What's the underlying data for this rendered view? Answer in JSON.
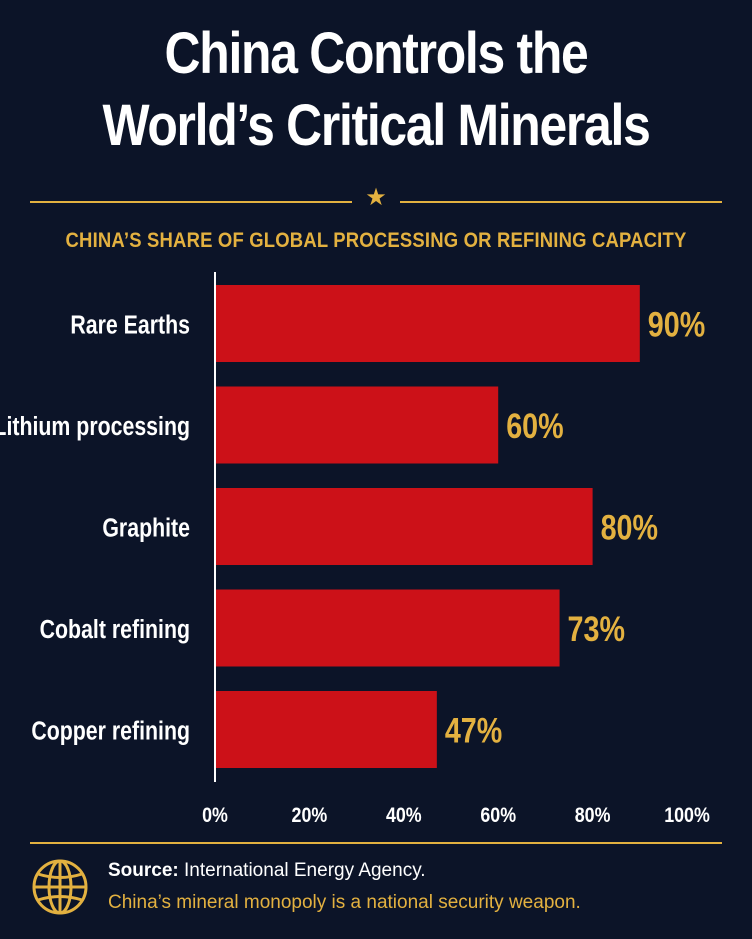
{
  "header": {
    "title_line1": "China Controls the",
    "title_line2": "World’s Critical Minerals",
    "star_glyph": "★",
    "subtitle": "CHINA’S SHARE OF GLOBAL PROCESSING OR REFINING CAPACITY"
  },
  "colors": {
    "background": "#0c1428",
    "bar": "#cc1118",
    "accent": "#e3b140",
    "text": "#ffffff"
  },
  "chart_data": {
    "type": "bar",
    "orientation": "horizontal",
    "title": "",
    "xlabel": "",
    "ylabel": "",
    "categories": [
      "Rare Earths",
      "Lithium processing",
      "Graphite",
      "Cobalt refining",
      "Copper refining"
    ],
    "values": [
      90,
      60,
      80,
      73,
      47
    ],
    "value_labels": [
      "90%",
      "60%",
      "80%",
      "73%",
      "47%"
    ],
    "xlim": [
      0,
      100
    ],
    "ticks": [
      0,
      20,
      40,
      60,
      80,
      100
    ],
    "tick_labels": [
      "0%",
      "20%",
      "40%",
      "60%",
      "80%",
      "100%"
    ],
    "grid": false,
    "legend": "none"
  },
  "footer": {
    "source_label": "Source:",
    "source_text": "International Energy Agency.",
    "tagline": "China’s mineral monopoly is a national security weapon.",
    "icon": "globe-icon"
  }
}
